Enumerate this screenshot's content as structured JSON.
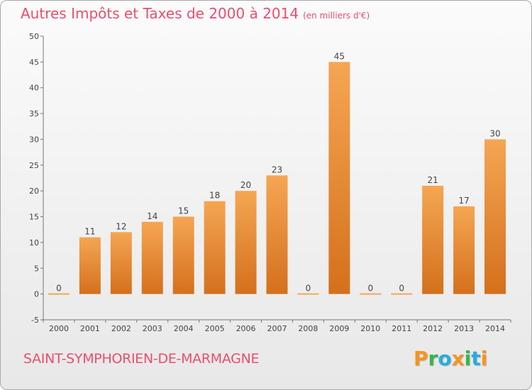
{
  "title": "Autres Impôts et Taxes de 2000 à 2014",
  "subtitle": "(en milliers d'€)",
  "town": "SAINT-SYMPHORIEN-DE-MARMAGNE",
  "logo": {
    "letters": [
      "P",
      "r",
      "o",
      "x",
      "i",
      "t",
      "i"
    ],
    "colors": [
      "#f7941d",
      "#3ab54a",
      "#29abe2",
      "#f7941d",
      "#3ab54a",
      "#29abe2",
      "#f7941d"
    ]
  },
  "colors": {
    "bar_top": "#f5a653",
    "bar_bottom": "#d4701c",
    "title": "#ea4e6f"
  },
  "chart_data": {
    "type": "bar",
    "title": "Autres Impôts et Taxes de 2000 à 2014",
    "categories": [
      "2000",
      "2001",
      "2002",
      "2003",
      "2004",
      "2005",
      "2006",
      "2007",
      "2008",
      "2009",
      "2010",
      "2011",
      "2012",
      "2013",
      "2014"
    ],
    "values": [
      0,
      11,
      12,
      14,
      15,
      18,
      20,
      23,
      0,
      45,
      0,
      0,
      21,
      17,
      30
    ],
    "ylim": [
      -5,
      50
    ],
    "yticks": [
      -5,
      0,
      5,
      10,
      15,
      20,
      25,
      30,
      35,
      40,
      45,
      50
    ],
    "grid": false,
    "legend": "none"
  }
}
